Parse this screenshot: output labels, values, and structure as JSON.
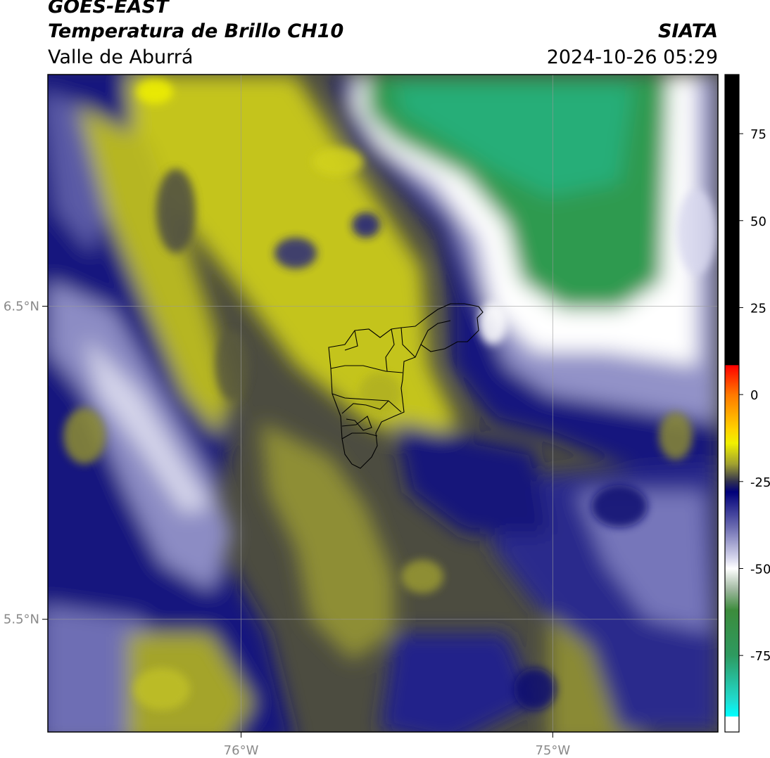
{
  "header": {
    "satellite": "GOES-EAST",
    "product": "Temperatura de Brillo CH10",
    "region": "Valle de Aburrá",
    "institution": "SIATA",
    "datetime": "2024-10-26 05:29"
  },
  "map": {
    "lat_labels": [
      {
        "value": 6.5,
        "label": "6.5°N"
      },
      {
        "value": 5.5,
        "label": "5.5°N"
      }
    ],
    "lon_labels": [
      {
        "value": -76.0,
        "label": "76°W"
      },
      {
        "value": -75.0,
        "label": "75°W"
      }
    ],
    "extent": {
      "lon_min": -76.62,
      "lon_max": -74.47,
      "lat_min": 5.14,
      "lat_max": 7.24
    },
    "gridlines": true
  },
  "colorbar": {
    "ticks": [
      75,
      50,
      25,
      0,
      -25,
      -50,
      -75
    ],
    "tick_labels": [
      "75",
      "50",
      "25",
      "0",
      "-25",
      "-50",
      "-75"
    ],
    "vmin": -97,
    "vmax": 92,
    "stops": [
      {
        "value": 92,
        "color": "#000000"
      },
      {
        "value": 8.5,
        "color": "#000000"
      },
      {
        "value": 8.4,
        "color": "#ff0000"
      },
      {
        "value": 0,
        "color": "#ff7800"
      },
      {
        "value": -10,
        "color": "#ffd200"
      },
      {
        "value": -14,
        "color": "#f0f000"
      },
      {
        "value": -20,
        "color": "#a0a030"
      },
      {
        "value": -25,
        "color": "#303050"
      },
      {
        "value": -28,
        "color": "#00007a"
      },
      {
        "value": -38,
        "color": "#6a6ab0"
      },
      {
        "value": -47,
        "color": "#d6d6ec"
      },
      {
        "value": -50,
        "color": "#ffffff"
      },
      {
        "value": -56,
        "color": "#a0b8a0"
      },
      {
        "value": -62,
        "color": "#3c8c3c"
      },
      {
        "value": -75,
        "color": "#2e9a60"
      },
      {
        "value": -88,
        "color": "#20dcd0"
      },
      {
        "value": -92.5,
        "color": "#00ffff"
      },
      {
        "value": -92.6,
        "color": "#ffffff"
      },
      {
        "value": -97,
        "color": "#ffffff"
      }
    ]
  },
  "field_colors": {
    "cold_green": "#2a9a50",
    "white_edge": "#ffffff",
    "lavender": "#9090c8",
    "navy": "#101080",
    "olive_dark": "#4a4a3a",
    "olive": "#8a8a30",
    "yellow": "#c8c81c"
  },
  "boundary_color": "#000000"
}
